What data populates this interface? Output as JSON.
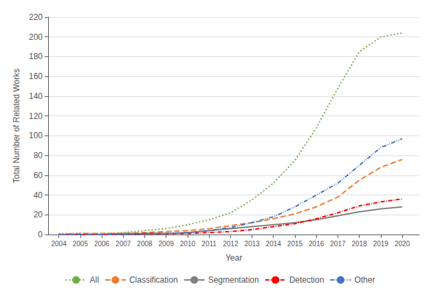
{
  "chart_data": {
    "type": "line",
    "x": [
      2004,
      2005,
      2006,
      2007,
      2008,
      2009,
      2010,
      2011,
      2012,
      2013,
      2014,
      2015,
      2016,
      2017,
      2018,
      2019,
      2020
    ],
    "xlim": [
      2003.5,
      2020.8
    ],
    "xticks": [
      2004,
      2005,
      2006,
      2007,
      2008,
      2009,
      2010,
      2011,
      2012,
      2013,
      2014,
      2015,
      2016,
      2017,
      2018,
      2019,
      2020
    ],
    "ylim": [
      0,
      220
    ],
    "yticks": [
      0,
      20,
      40,
      60,
      80,
      100,
      120,
      140,
      160,
      180,
      200,
      220
    ],
    "xlabel": "Year",
    "ylabel": "Total Number of Related Works",
    "grid": true,
    "legend": "bottom",
    "series": [
      {
        "name": "All",
        "color": "#70AD47",
        "line_style": "dotted",
        "values": [
          1,
          1,
          1,
          2,
          4,
          6,
          10,
          15,
          22,
          35,
          52,
          75,
          108,
          148,
          185,
          200,
          204
        ]
      },
      {
        "name": "Classification",
        "color": "#ED7D31",
        "line_style": "dashed",
        "values": [
          0,
          1,
          1,
          1,
          2,
          3,
          4,
          6,
          9,
          12,
          16,
          21,
          28,
          38,
          55,
          68,
          76
        ]
      },
      {
        "name": "Segmentation",
        "color": "#808080",
        "line_style": "solid",
        "values": [
          0,
          0,
          0,
          1,
          1,
          1,
          2,
          4,
          6,
          8,
          10,
          12,
          15,
          19,
          23,
          26,
          28
        ]
      },
      {
        "name": "Detection",
        "color": "#FF0000",
        "line_style": "dashdot",
        "values": [
          0,
          0,
          0,
          0,
          1,
          1,
          1,
          2,
          3,
          5,
          8,
          11,
          16,
          22,
          29,
          33,
          36
        ]
      },
      {
        "name": "Other",
        "color": "#4472C4",
        "line_style": "dashdotdot",
        "values": [
          0,
          0,
          0,
          0,
          1,
          1,
          2,
          4,
          7,
          12,
          18,
          28,
          40,
          52,
          70,
          88,
          97
        ]
      }
    ]
  }
}
